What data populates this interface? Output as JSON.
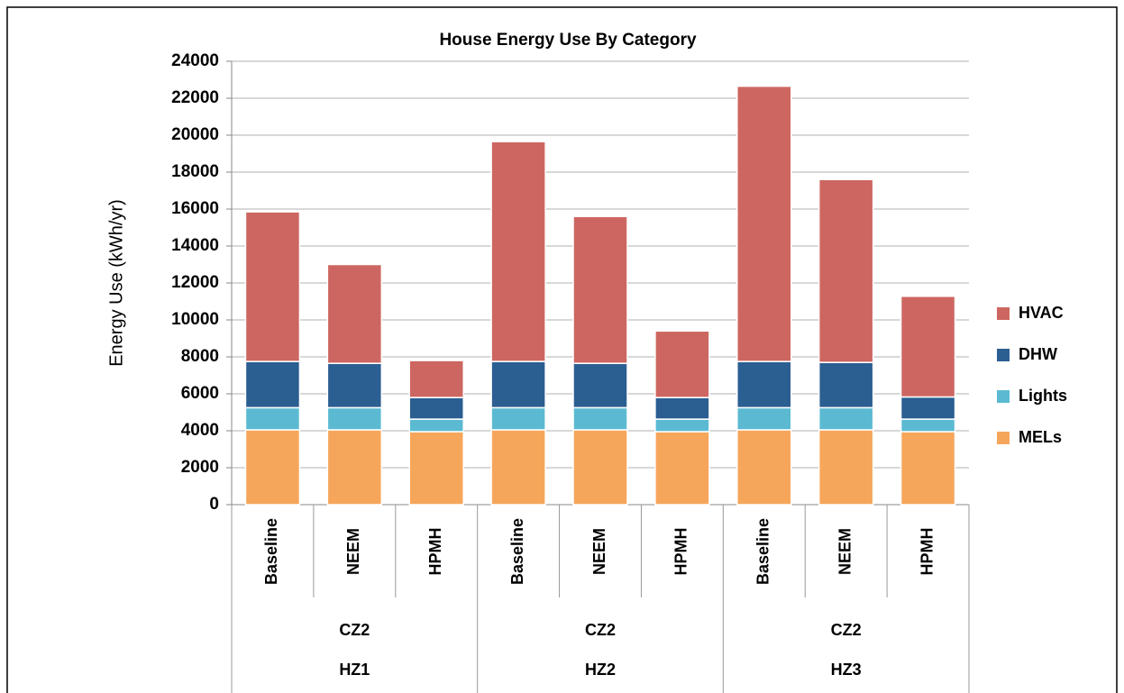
{
  "chart_data": {
    "type": "stacked_bar",
    "title": "House Energy Use By Category",
    "y_label": "Energy Use (kWh/yr)",
    "categories": [
      "Baseline",
      "NEEM",
      "HPMH",
      "Baseline",
      "NEEM",
      "HPMH",
      "Baseline",
      "NEEM",
      "HPMH"
    ],
    "groups": [
      {
        "zone": "CZ2",
        "name": "HZ1"
      },
      {
        "zone": "CZ2",
        "name": "HZ2"
      },
      {
        "zone": "CZ2",
        "name": "HZ3"
      }
    ],
    "series": [
      {
        "name": "MELs",
        "color": "#f6a65b",
        "values": [
          4050,
          4050,
          3950,
          4050,
          4050,
          3950,
          4050,
          4050,
          3950
        ]
      },
      {
        "name": "Lights",
        "color": "#5bbad2",
        "values": [
          1200,
          1200,
          680,
          1200,
          1200,
          680,
          1200,
          1200,
          680
        ]
      },
      {
        "name": "DHW",
        "color": "#2b5e91",
        "values": [
          2500,
          2400,
          1170,
          2500,
          2400,
          1170,
          2500,
          2450,
          1200
        ]
      },
      {
        "name": "HVAC",
        "color": "#cd6661",
        "values": [
          8100,
          5350,
          2000,
          11900,
          7950,
          3600,
          14900,
          9900,
          5450
        ]
      }
    ],
    "ylim": [
      0,
      24000
    ],
    "yticks": [
      0,
      2000,
      4000,
      6000,
      8000,
      10000,
      12000,
      14000,
      16000,
      18000,
      20000,
      22000,
      24000
    ],
    "grid": true,
    "legend": "right"
  }
}
